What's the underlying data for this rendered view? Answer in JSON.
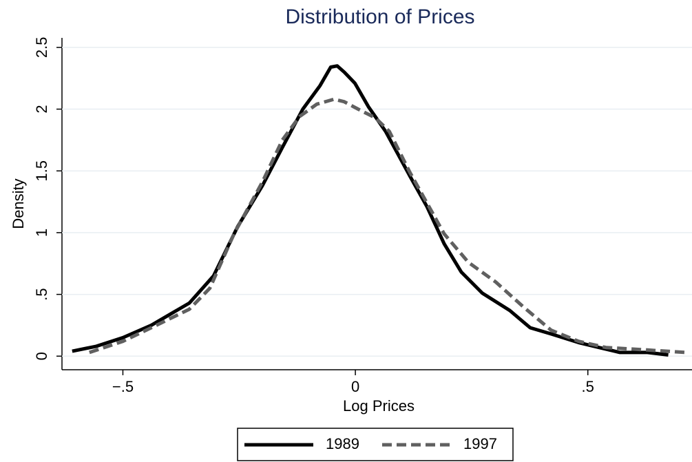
{
  "chart_data": {
    "type": "line",
    "title": "Distribution of Prices",
    "x_label": "Log Prices",
    "y_label": "Density",
    "xlim": [
      -0.631,
      0.724
    ],
    "ylim": [
      -0.11,
      2.577
    ],
    "xticks": [
      {
        "value": -0.5,
        "label": "−.5"
      },
      0,
      {
        "value": 0.5,
        "label": ".5"
      }
    ],
    "yticks": [
      0,
      {
        "value": 0.5,
        "label": ".5"
      },
      1,
      1.5,
      2,
      2.5
    ],
    "grid": true,
    "legend": "bottom",
    "series": [
      {
        "name": "1989",
        "color": "#000000",
        "dash": "solid",
        "x": [
          -0.609,
          -0.557,
          -0.5,
          -0.439,
          -0.357,
          -0.305,
          -0.253,
          -0.2,
          -0.157,
          -0.113,
          -0.076,
          -0.053,
          -0.039,
          -0.024,
          -0.001,
          0.028,
          0.065,
          0.117,
          0.154,
          0.191,
          0.228,
          0.273,
          0.332,
          0.376,
          0.421,
          0.48,
          0.524,
          0.569,
          0.628,
          0.673
        ],
        "values": [
          0.04,
          0.08,
          0.15,
          0.25,
          0.43,
          0.65,
          1.05,
          1.38,
          1.69,
          2.0,
          2.19,
          2.34,
          2.35,
          2.3,
          2.21,
          2.02,
          1.82,
          1.46,
          1.21,
          0.91,
          0.68,
          0.51,
          0.37,
          0.23,
          0.18,
          0.11,
          0.07,
          0.03,
          0.03,
          0.01
        ]
      },
      {
        "name": "1997",
        "color": "#606060",
        "dash": "dashed",
        "x": [
          -0.572,
          -0.5,
          -0.439,
          -0.357,
          -0.313,
          -0.261,
          -0.2,
          -0.157,
          -0.12,
          -0.083,
          -0.046,
          -0.024,
          0.006,
          0.043,
          0.073,
          0.117,
          0.154,
          0.191,
          0.243,
          0.302,
          0.361,
          0.421,
          0.48,
          0.539,
          0.628,
          0.71
        ],
        "values": [
          0.03,
          0.12,
          0.23,
          0.38,
          0.55,
          0.99,
          1.41,
          1.75,
          1.94,
          2.04,
          2.08,
          2.06,
          2.0,
          1.93,
          1.82,
          1.49,
          1.24,
          0.99,
          0.76,
          0.6,
          0.4,
          0.21,
          0.12,
          0.07,
          0.05,
          0.03
        ]
      }
    ]
  }
}
